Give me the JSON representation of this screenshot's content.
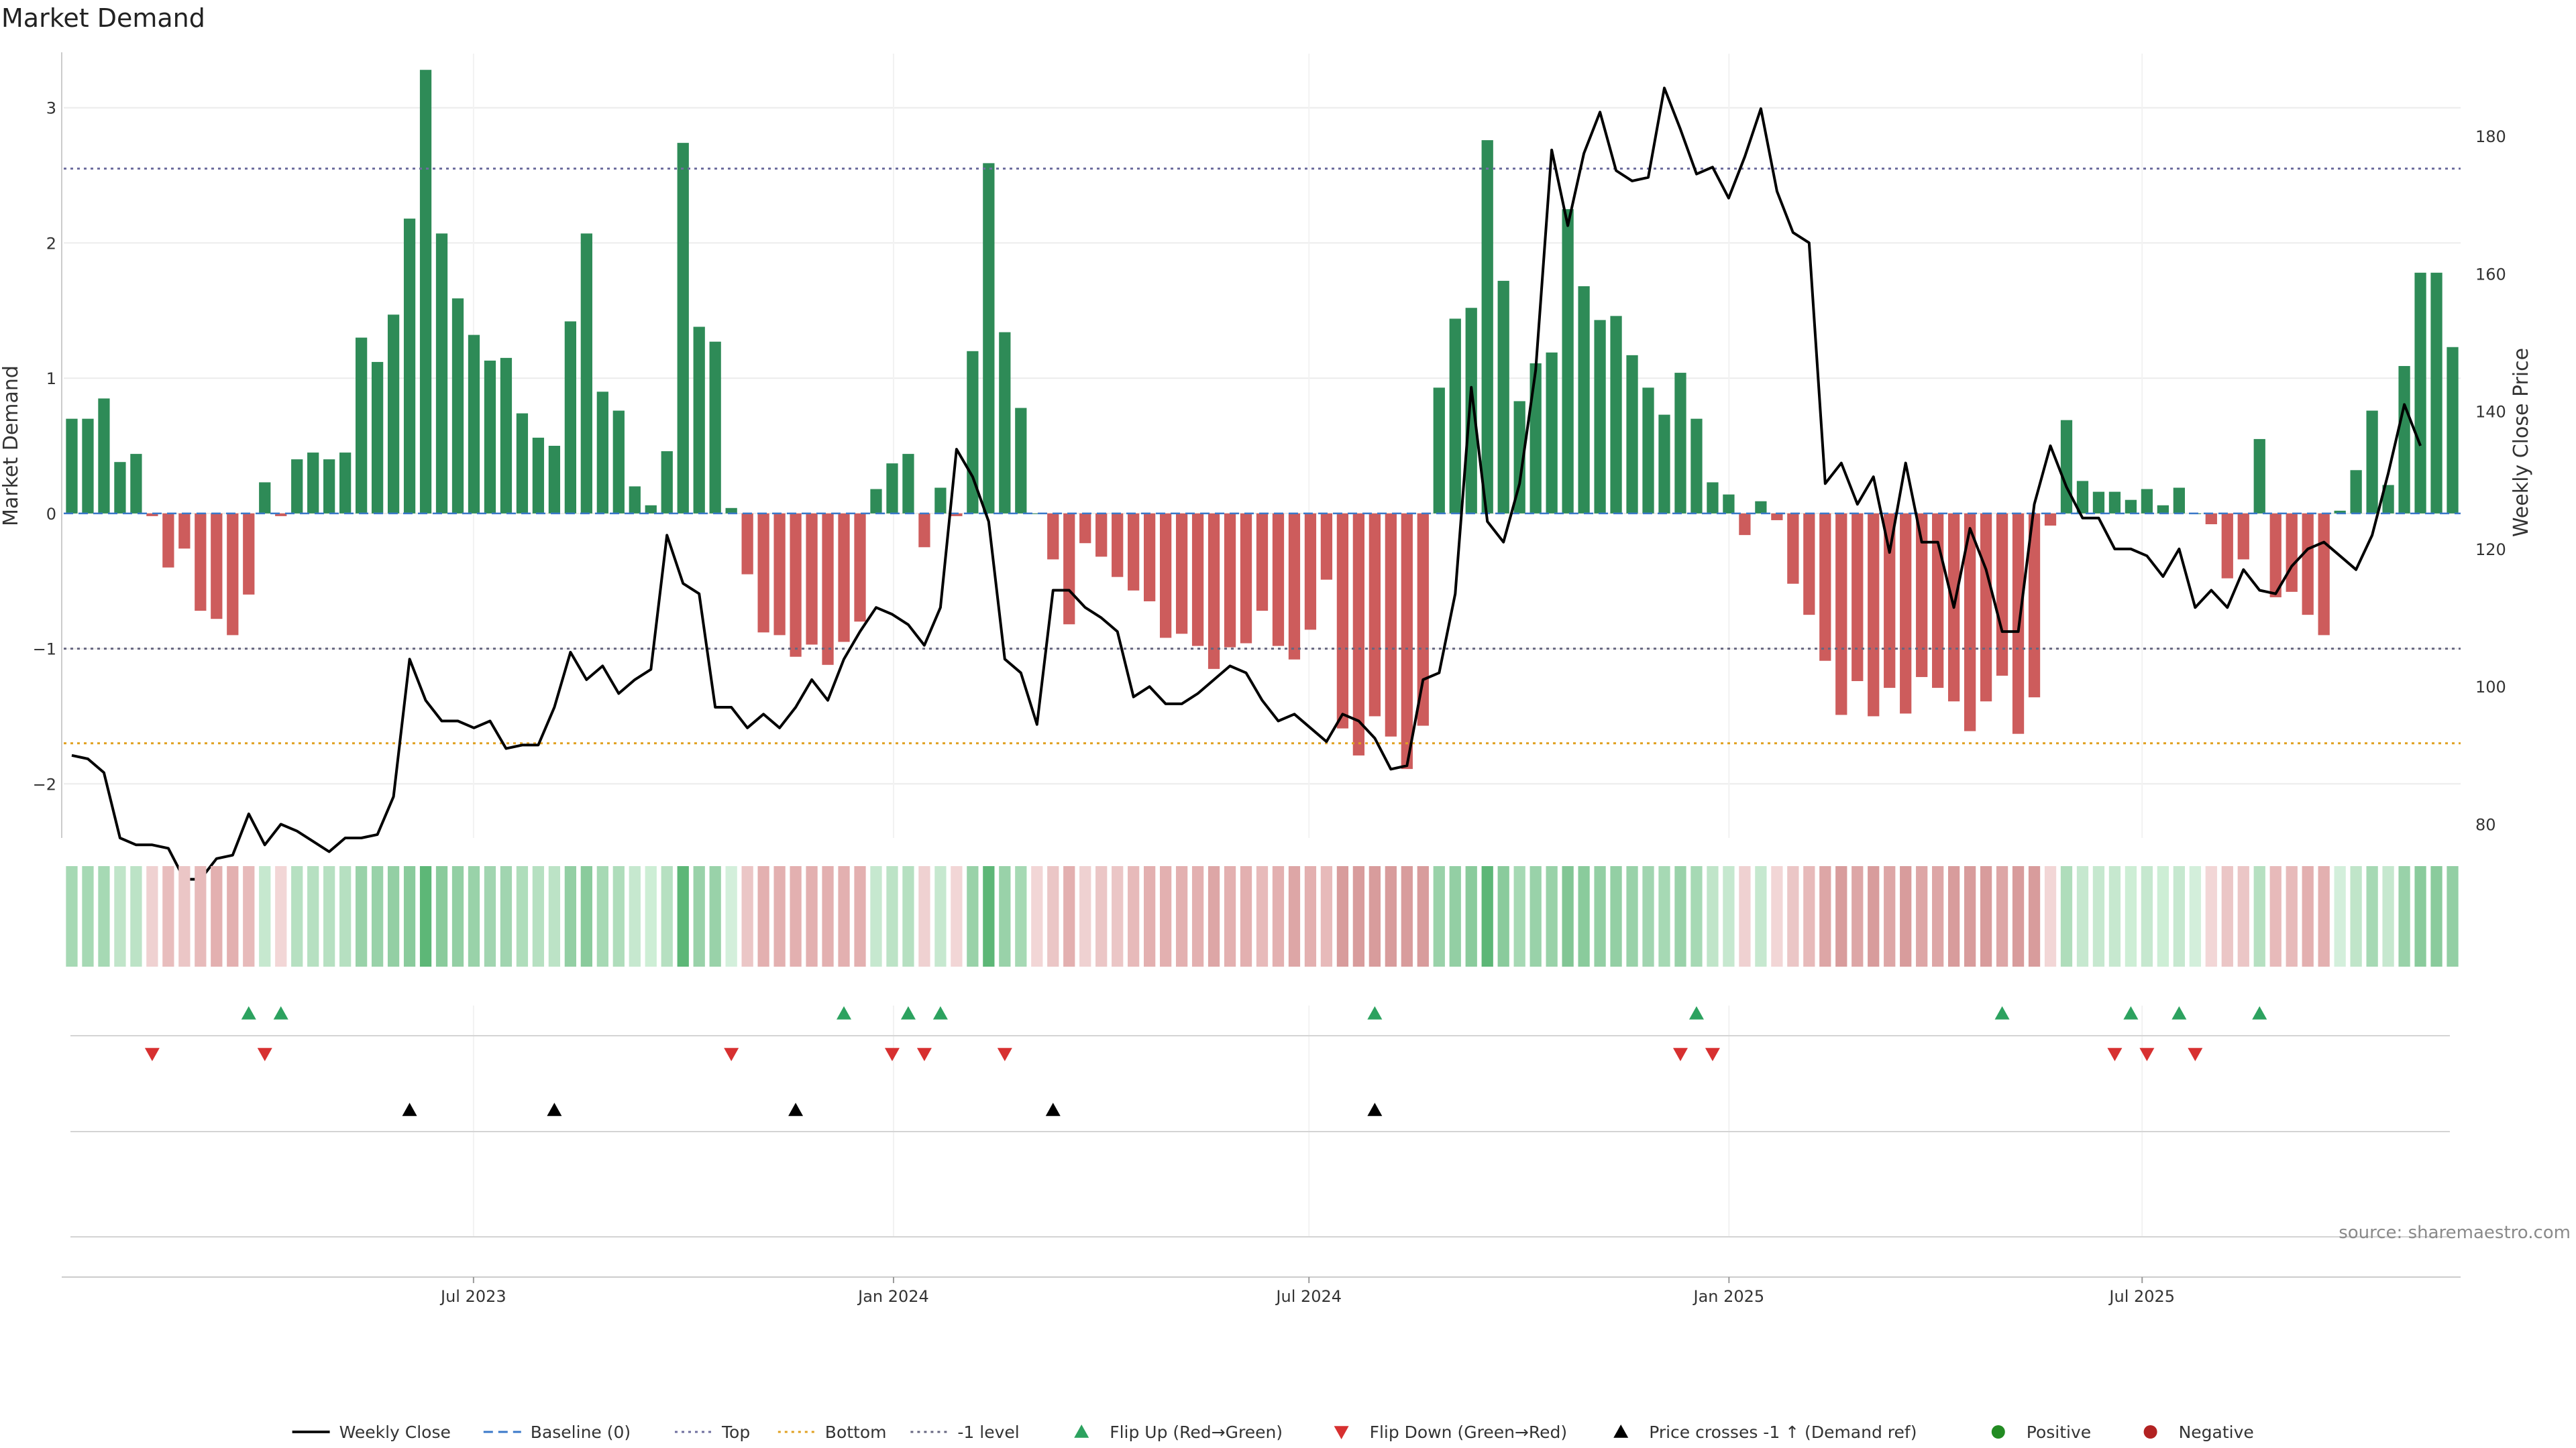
{
  "chart_data": {
    "type": "bar",
    "title": "Market Demand",
    "ylabel": "Market Demand",
    "y2label": "Weekly Close Price",
    "source": "source: sharemaestro.com",
    "ylim": [
      -2.4,
      3.4
    ],
    "y2lim": [
      78,
      192
    ],
    "yticks": [
      "3",
      "2",
      "1",
      "0",
      "−1",
      "−2"
    ],
    "yticks_values": [
      3,
      2,
      1,
      0,
      -1,
      -2
    ],
    "y2ticks": [
      "180",
      "160",
      "140",
      "120",
      "100",
      "80"
    ],
    "y2ticks_values": [
      180,
      160,
      140,
      120,
      100,
      80
    ],
    "x_start": "2023-01-06",
    "x_end": "2025-11-14",
    "xticks": [
      {
        "label": "Jul 2023",
        "date": "2023-07-01"
      },
      {
        "label": "Jan 2024",
        "date": "2024-01-01"
      },
      {
        "label": "Jul 2024",
        "date": "2024-07-01"
      },
      {
        "label": "Jan 2025",
        "date": "2025-01-01"
      },
      {
        "label": "Jul 2025",
        "date": "2025-07-01"
      }
    ],
    "reference_lines": {
      "top": 2.55,
      "bottom": -1.7,
      "minus_one": -1.0,
      "baseline": 0
    },
    "demand": [
      0.7,
      0.7,
      0.85,
      0.38,
      0.44,
      -0.02,
      -0.4,
      -0.26,
      -0.72,
      -0.78,
      -0.9,
      -0.6,
      0.23,
      -0.02,
      0.4,
      0.45,
      0.4,
      0.45,
      1.3,
      1.12,
      1.47,
      2.18,
      3.28,
      2.07,
      1.59,
      1.32,
      1.13,
      1.15,
      0.74,
      0.56,
      0.5,
      1.42,
      2.07,
      0.9,
      0.76,
      0.2,
      0.06,
      0.46,
      2.74,
      1.38,
      1.27,
      0.04,
      -0.45,
      -0.88,
      -0.9,
      -1.06,
      -0.97,
      -1.12,
      -0.95,
      -0.8,
      0.18,
      0.37,
      0.44,
      -0.25,
      0.19,
      -0.02,
      1.2,
      2.59,
      1.34,
      0.78,
      0.0,
      -0.34,
      -0.82,
      -0.22,
      -0.32,
      -0.47,
      -0.57,
      -0.65,
      -0.92,
      -0.89,
      -0.98,
      -1.15,
      -0.99,
      -0.96,
      -0.72,
      -0.98,
      -1.08,
      -0.86,
      -0.49,
      -1.59,
      -1.79,
      -1.5,
      -1.65,
      -1.89,
      -1.57,
      0.93,
      1.44,
      1.52,
      2.76,
      1.72,
      0.83,
      1.11,
      1.19,
      2.25,
      1.68,
      1.43,
      1.46,
      1.17,
      0.93,
      0.73,
      1.04,
      0.7,
      0.23,
      0.14,
      -0.16,
      0.09,
      -0.05,
      -0.52,
      -0.75,
      -1.09,
      -1.49,
      -1.24,
      -1.5,
      -1.29,
      -1.48,
      -1.21,
      -1.29,
      -1.39,
      -1.61,
      -1.39,
      -1.2,
      -1.63,
      -1.36,
      -0.09,
      0.69,
      0.24,
      0.16,
      0.16,
      0.1,
      0.18,
      0.06,
      0.19,
      0.0,
      -0.08,
      -0.48,
      -0.34,
      0.55,
      -0.62,
      -0.58,
      -0.75,
      -0.9,
      0.02,
      0.32,
      0.76,
      0.21,
      1.09,
      1.78,
      1.78,
      1.23
    ],
    "close": [
      90,
      89.5,
      87.5,
      78,
      77,
      77,
      76.5,
      72,
      72,
      75,
      75.5,
      81.5,
      77,
      80,
      79,
      77.5,
      76,
      78,
      78,
      78.5,
      84,
      104,
      98,
      95,
      95,
      94,
      95,
      91,
      91.5,
      91.5,
      97,
      105,
      101,
      103,
      99,
      101,
      102.5,
      122,
      115,
      113.5,
      97,
      97,
      94,
      96,
      94,
      97,
      101,
      98,
      104,
      108,
      111.5,
      110.5,
      109,
      106,
      111.5,
      134.5,
      130.5,
      124,
      104,
      102,
      94.5,
      114,
      114,
      111.5,
      110,
      108,
      98.5,
      100,
      97.5,
      97.5,
      99,
      101,
      103,
      102,
      98,
      95,
      96,
      94,
      92,
      96,
      95,
      92.5,
      88,
      88.5,
      101,
      102,
      113.5,
      143.5,
      124,
      121,
      129.5,
      146,
      178,
      167,
      177.5,
      183.5,
      175,
      173.5,
      174,
      187,
      181,
      174.5,
      175.5,
      171,
      177,
      184,
      172,
      166,
      164.5,
      129.5,
      132.5,
      126.5,
      130.5,
      119.5,
      132.5,
      121,
      121,
      111.5,
      123,
      117,
      108,
      108,
      126.5,
      135,
      129,
      124.5,
      124.5,
      120,
      120,
      119,
      116,
      120,
      111.5,
      114,
      111.5,
      117,
      114,
      113.5,
      117.5,
      120,
      121,
      119,
      117,
      122,
      131,
      141,
      135
    ],
    "strip_colors": [
      "#a6d9b4",
      "#a6d9b4",
      "#a6d9b4",
      "#c0e5c9",
      "#bce3c6",
      "#efd1d1",
      "#e8bdbd",
      "#ebc6c6",
      "#e7baba",
      "#e3b0b0",
      "#e3b0b0",
      "#e7baba",
      "#c6e8cf",
      "#f2d6d6",
      "#b6e0c1",
      "#b6e0c1",
      "#b6e0c1",
      "#b6e0c1",
      "#99d2a9",
      "#99d2a9",
      "#93cfa4",
      "#8acb9c",
      "#5db777",
      "#8acb9c",
      "#93cfa4",
      "#99d2a9",
      "#a1d5b0",
      "#a1d5b0",
      "#afddbb",
      "#b6e0c1",
      "#bce3c6",
      "#93cfa4",
      "#8acb9c",
      "#a6d9b4",
      "#afddbb",
      "#c6e8cf",
      "#cdeed5",
      "#b6e0c1",
      "#5db777",
      "#99d2a9",
      "#99d2a9",
      "#d3efdb",
      "#ebc6c6",
      "#e3b0b0",
      "#e3b0b0",
      "#e3b0b0",
      "#e3b0b0",
      "#e3b0b0",
      "#e3b0b0",
      "#e3b0b0",
      "#c6e8cf",
      "#bce3c6",
      "#b6e0c1",
      "#efd1d1",
      "#c6e8cf",
      "#f2d6d6",
      "#99d2a9",
      "#5db777",
      "#99d2a9",
      "#a6d9b4",
      "#f2d6d6",
      "#ebc6c6",
      "#e3b0b0",
      "#efd1d1",
      "#ebc6c6",
      "#ebc6c6",
      "#e7baba",
      "#e3b0b0",
      "#e3b0b0",
      "#e3b0b0",
      "#e3b0b0",
      "#dda6a6",
      "#e3b0b0",
      "#e3b0b0",
      "#e7baba",
      "#e3b0b0",
      "#dda6a6",
      "#e3b0b0",
      "#e7baba",
      "#d89c9c",
      "#d89c9c",
      "#d89c9c",
      "#d89c9c",
      "#d89c9c",
      "#d89c9c",
      "#99d2a9",
      "#93cfa4",
      "#8acb9c",
      "#5db777",
      "#8acb9c",
      "#a6d9b4",
      "#99d2a9",
      "#99d2a9",
      "#82c695",
      "#8acb9c",
      "#93cfa4",
      "#93cfa4",
      "#99d2a9",
      "#a1d5b0",
      "#a6d9b4",
      "#99d2a9",
      "#a6d9b4",
      "#c0e5c9",
      "#c6e8cf",
      "#efd1d1",
      "#c6e8cf",
      "#f2d6d6",
      "#ebc6c6",
      "#e7baba",
      "#dda6a6",
      "#d89c9c",
      "#dda6a6",
      "#d89c9c",
      "#dda6a6",
      "#d89c9c",
      "#dda6a6",
      "#dda6a6",
      "#d89c9c",
      "#d89c9c",
      "#d89c9c",
      "#dda6a6",
      "#d89c9c",
      "#d89c9c",
      "#f2d6d6",
      "#afddbb",
      "#c6e8cf",
      "#c6e8cf",
      "#c6e8cf",
      "#cdeed5",
      "#c6e8cf",
      "#cdeed5",
      "#c6e8cf",
      "#d3efdb",
      "#f2d6d6",
      "#ebc6c6",
      "#ebc6c6",
      "#b6e0c1",
      "#e7baba",
      "#e7baba",
      "#e3b0b0",
      "#e3b0b0",
      "#d3efdb",
      "#c0e5c9",
      "#a6d9b4",
      "#c6e8cf",
      "#99d2a9",
      "#8acb9c",
      "#8acb9c",
      "#93cfa4"
    ],
    "flip_up_weeks": [
      11,
      13,
      48,
      52,
      54,
      81,
      101,
      120,
      128,
      131,
      136
    ],
    "flip_down_weeks": [
      5,
      12,
      41,
      51,
      53,
      58,
      100,
      102,
      127,
      129,
      132
    ],
    "price_cross_weeks": [
      21,
      30,
      45,
      61,
      81
    ],
    "legend": [
      {
        "label": "Weekly Close",
        "marker": "line",
        "color": "#111111"
      },
      {
        "label": "Baseline (0)",
        "marker": "dash",
        "color": "#3a78c9"
      },
      {
        "label": "Top",
        "marker": "dot",
        "color": "#6f6f9f"
      },
      {
        "label": "Bottom",
        "marker": "dot",
        "color": "#e0a020"
      },
      {
        "label": "-1 level",
        "marker": "dot",
        "color": "#666680"
      },
      {
        "label": "Flip Up (Red→Green)",
        "marker": "tri-up",
        "color": "#2ca25f"
      },
      {
        "label": "Flip Down (Green→Red)",
        "marker": "tri-down",
        "color": "#d73030"
      },
      {
        "label": "Price crosses -1 ↑ (Demand ref)",
        "marker": "tri-up",
        "color": "#000000"
      },
      {
        "label": "Positive",
        "marker": "circle",
        "color": "#228b22"
      },
      {
        "label": "Negative",
        "marker": "circle",
        "color": "#b22222"
      }
    ],
    "colors": {
      "positive_bar": "#2e8b57",
      "negative_bar": "#cd5c5c",
      "close_line": "#000000"
    }
  }
}
